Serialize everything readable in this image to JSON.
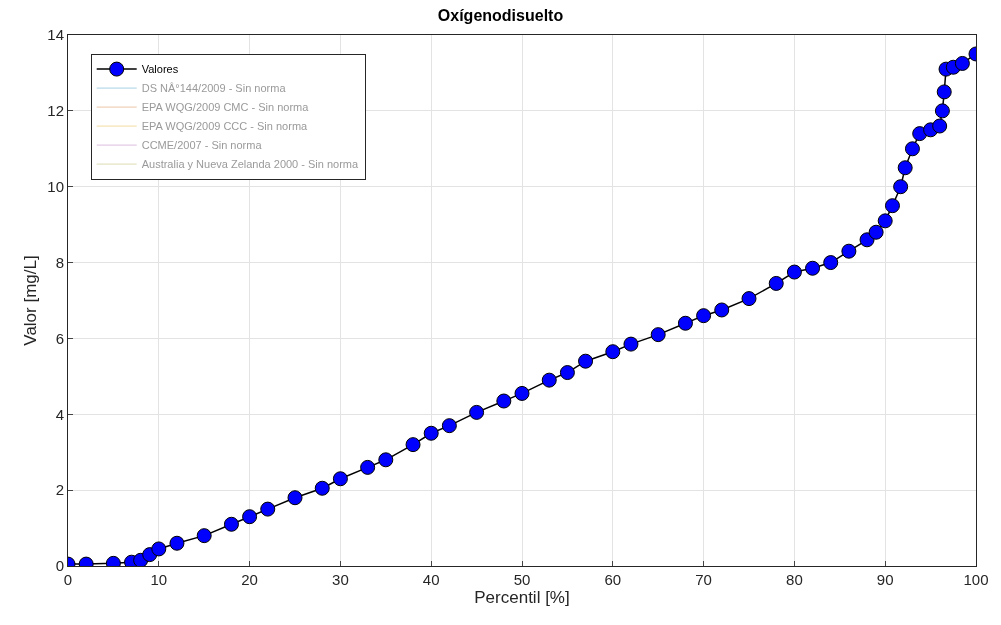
{
  "chart_data": {
    "type": "line",
    "title": "Oxígenodisuelto",
    "xlabel": "Percentil [%]",
    "ylabel": "Valor [mg/L]",
    "xlim": [
      0,
      100
    ],
    "xticks": [
      0,
      10,
      20,
      30,
      40,
      50,
      60,
      70,
      80,
      90,
      100
    ],
    "ylim": [
      0,
      14
    ],
    "yticks": [
      0,
      2,
      4,
      6,
      8,
      10,
      12,
      14
    ],
    "grid": true,
    "legend": "top left",
    "marker": "circle",
    "line_style": "solid",
    "series": [
      {
        "name": "Valores",
        "color": "#0000ff",
        "x": [
          0,
          2,
          5,
          7,
          8,
          9,
          10,
          12,
          15,
          18,
          20,
          22,
          25,
          28,
          30,
          33,
          35,
          38,
          40,
          42,
          45,
          48,
          50,
          53,
          55,
          57,
          60,
          62,
          65,
          68,
          70,
          72,
          75,
          78,
          80,
          82,
          84,
          86,
          88,
          89,
          90,
          90.8,
          91.7,
          92.2,
          93,
          93.8,
          95,
          96,
          96.3,
          96.5,
          96.7,
          97.5,
          98.5,
          100
        ],
        "values": [
          0.05,
          0.05,
          0.07,
          0.1,
          0.15,
          0.3,
          0.45,
          0.6,
          0.8,
          1.1,
          1.3,
          1.5,
          1.8,
          2.05,
          2.3,
          2.6,
          2.8,
          3.2,
          3.5,
          3.7,
          4.05,
          4.35,
          4.55,
          4.9,
          5.1,
          5.4,
          5.65,
          5.85,
          6.1,
          6.4,
          6.6,
          6.75,
          7.05,
          7.45,
          7.75,
          7.85,
          8.0,
          8.3,
          8.6,
          8.8,
          9.1,
          9.5,
          10.0,
          10.5,
          11.0,
          11.4,
          11.5,
          11.6,
          12.0,
          12.5,
          13.1,
          13.15,
          13.25,
          13.5
        ]
      },
      {
        "name": "DS NÂ°144/2009 - Sin norma",
        "color": "#a6d0e4"
      },
      {
        "name": "EPA WQG/2009 CMC - Sin norma",
        "color": "#ecc4a6"
      },
      {
        "name": "EPA WQG/2009 CCC - Sin norma",
        "color": "#f2dca0"
      },
      {
        "name": "CCME/2007 - Sin norma",
        "color": "#dcbce0"
      },
      {
        "name": "Australia y Nueva Zelanda 2000 - Sin norma",
        "color": "#dcdcb4"
      }
    ]
  }
}
